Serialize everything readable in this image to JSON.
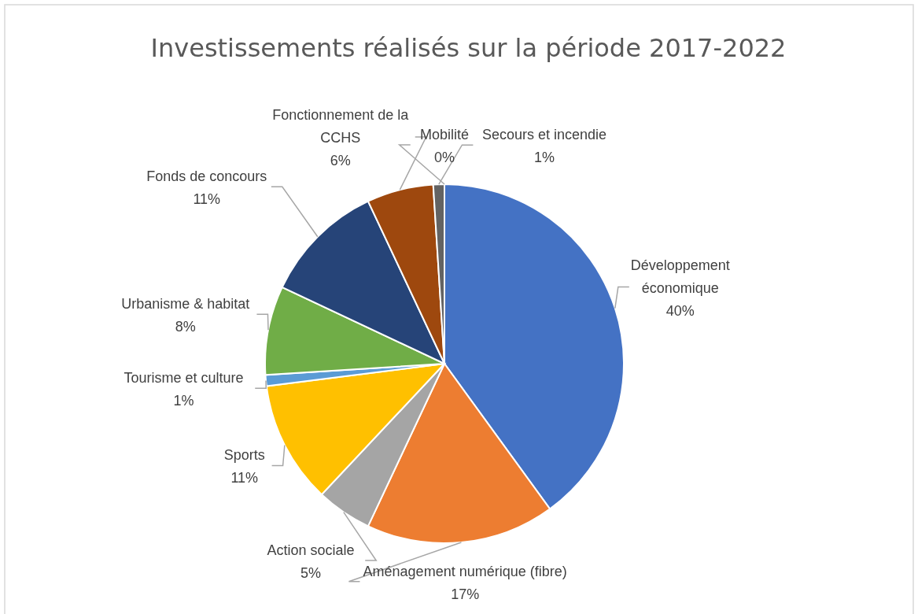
{
  "chart_data": {
    "type": "pie",
    "title": "Investissements réalisés sur la période 2017-2022",
    "categories": [
      "Développement économique",
      "Aménagement numérique (fibre)",
      "Action sociale",
      "Sports",
      "Tourisme et culture",
      "Urbanisme & habitat",
      "Fonds de concours",
      "Fonctionnement de la CCHS",
      "Secours et incendie",
      "Mobilité"
    ],
    "values": [
      40,
      17,
      5,
      11,
      1,
      8,
      11,
      6,
      1,
      0
    ],
    "value_labels": [
      "40%",
      "17%",
      "5%",
      "11%",
      "1%",
      "8%",
      "11%",
      "6%",
      "1%",
      "0%"
    ],
    "colors": [
      "#4472c4",
      "#ed7d31",
      "#a5a5a5",
      "#ffc000",
      "#5b9bd5",
      "#70ad47",
      "#264478",
      "#9e480e",
      "#636363",
      "#997300"
    ]
  }
}
